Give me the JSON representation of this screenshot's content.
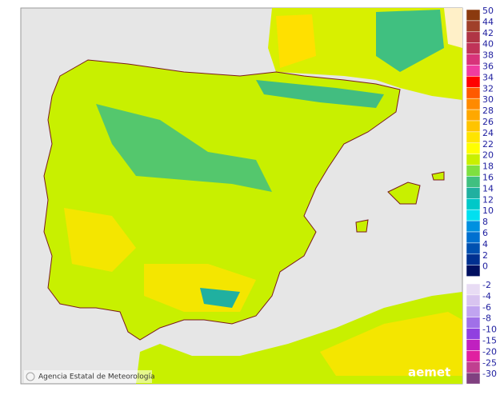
{
  "map": {
    "credit": "Agencia Estatal de Meteorología",
    "logo": "aemet",
    "legend_upper": [
      {
        "value": 50,
        "color": "#8b3a0f"
      },
      {
        "value": 44,
        "color": "#a0402a"
      },
      {
        "value": 42,
        "color": "#b03545"
      },
      {
        "value": 40,
        "color": "#c03358"
      },
      {
        "value": 38,
        "color": "#d8337a"
      },
      {
        "value": 36,
        "color": "#f03ca0"
      },
      {
        "value": 34,
        "color": "#ff0000"
      },
      {
        "value": 32,
        "color": "#ff5a00"
      },
      {
        "value": 30,
        "color": "#ff8a00"
      },
      {
        "value": 28,
        "color": "#ffa800"
      },
      {
        "value": 26,
        "color": "#ffc400"
      },
      {
        "value": 24,
        "color": "#ffe400"
      },
      {
        "value": 22,
        "color": "#ffff00"
      },
      {
        "value": 20,
        "color": "#c8f000"
      },
      {
        "value": 18,
        "color": "#7ee040"
      },
      {
        "value": 16,
        "color": "#40c080"
      },
      {
        "value": 14,
        "color": "#20b0a0"
      },
      {
        "value": 12,
        "color": "#00c8c8"
      },
      {
        "value": 10,
        "color": "#00e0f0"
      },
      {
        "value": 8,
        "color": "#0090e0"
      },
      {
        "value": 6,
        "color": "#0070d0"
      },
      {
        "value": 4,
        "color": "#0050b0"
      },
      {
        "value": 2,
        "color": "#003090"
      },
      {
        "value": 0,
        "color": "#001060"
      }
    ],
    "legend_lower": [
      {
        "value": -2,
        "color": "#e8dcf4"
      },
      {
        "value": -4,
        "color": "#d8c4f0"
      },
      {
        "value": -6,
        "color": "#c0a4f0"
      },
      {
        "value": -8,
        "color": "#a070e8"
      },
      {
        "value": -10,
        "color": "#9040e0"
      },
      {
        "value": -15,
        "color": "#c020c0"
      },
      {
        "value": -20,
        "color": "#e020a0"
      },
      {
        "value": -25,
        "color": "#c04090"
      },
      {
        "value": -30,
        "color": "#804080"
      }
    ]
  }
}
